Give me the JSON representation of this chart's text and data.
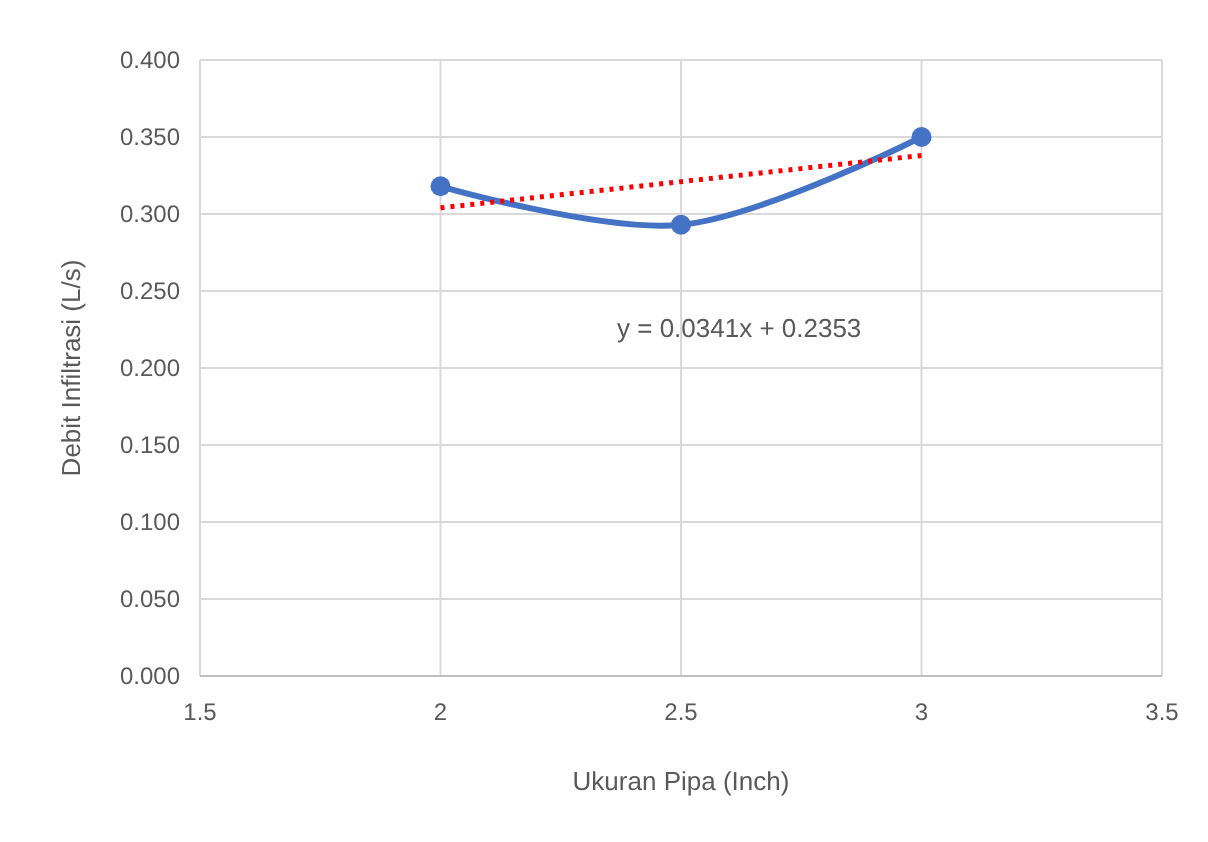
{
  "chart_data": {
    "type": "line",
    "xlabel": "Ukuran Pipa (Inch)",
    "ylabel": "Debit Infiltrasi (L/s)",
    "x": [
      2,
      2.5,
      3
    ],
    "series": [
      {
        "color": "#4472c4",
        "values": [
          0.318,
          0.293,
          0.35
        ],
        "marker": "circle",
        "line_style": "solid"
      },
      {
        "type": "line",
        "x": [
          2,
          3
        ],
        "color": "#ff0000",
        "values": [
          0.304,
          0.338
        ],
        "marker": "none",
        "line_style": "dotted"
      }
    ],
    "xlim": [
      1.5,
      3.5
    ],
    "xticks": [
      1.5,
      2,
      2.5,
      3,
      3.5
    ],
    "ylim": [
      0,
      0.4
    ],
    "yticks": [
      {
        "value": 0,
        "label": "0.000"
      },
      {
        "value": 0.05,
        "label": "0.050"
      },
      {
        "value": 0.1,
        "label": "0.100"
      },
      {
        "value": 0.15,
        "label": "0.150"
      },
      {
        "value": 0.2,
        "label": "0.200"
      },
      {
        "value": 0.25,
        "label": "0.250"
      },
      {
        "value": 0.3,
        "label": "0.300"
      },
      {
        "value": 0.35,
        "label": "0.350"
      },
      {
        "value": 0.4,
        "label": "0.400"
      }
    ],
    "grid": true,
    "annotations": [
      "y = 0.0341x + 0.2353"
    ]
  }
}
